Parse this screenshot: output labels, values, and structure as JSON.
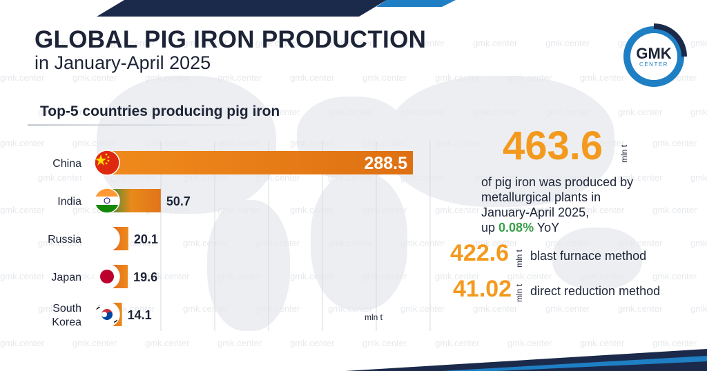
{
  "header": {
    "title": "GLOBAL PIG IRON PRODUCTION",
    "subtitle": "in January-April 2025"
  },
  "logo": {
    "main": "GMK",
    "sub": "CENTER"
  },
  "watermark_text": "gmk.center",
  "chart_data": {
    "type": "bar",
    "orientation": "horizontal",
    "title": "Top-5 countries producing pig iron",
    "categories": [
      "China",
      "India",
      "Russia",
      "Japan",
      "South Korea"
    ],
    "category_lines": [
      [
        "China"
      ],
      [
        "India"
      ],
      [
        "Russia"
      ],
      [
        "Japan"
      ],
      [
        "South",
        "Korea"
      ]
    ],
    "values": [
      288.5,
      50.7,
      20.1,
      19.6,
      14.1
    ],
    "value_labels": [
      "288.5",
      "50.7",
      "20.1",
      "19.6",
      "14.1"
    ],
    "unit": "mln t",
    "grid": true
  },
  "summary": {
    "total_value": "463.6",
    "total_unit": "mln t",
    "description_lines": [
      "of pig iron was produced by",
      "metallurgical plants in",
      "January-April 2025,"
    ],
    "change_prefix": "up ",
    "change_value": "0.08%",
    "change_suffix": " YoY",
    "methods": [
      {
        "value": "422.6",
        "unit": "mln t",
        "label": "blast furnace method"
      },
      {
        "value": "41.02",
        "unit": "mln t",
        "label": "direct reduction method"
      }
    ]
  },
  "colors": {
    "accent": "#f39a1e",
    "bar_gradient_start": "#f08a1c",
    "bar_gradient_end": "#de7012",
    "dark_text": "#1d2437",
    "brand_blue": "#1f7fc4",
    "positive": "#3aa04a"
  }
}
